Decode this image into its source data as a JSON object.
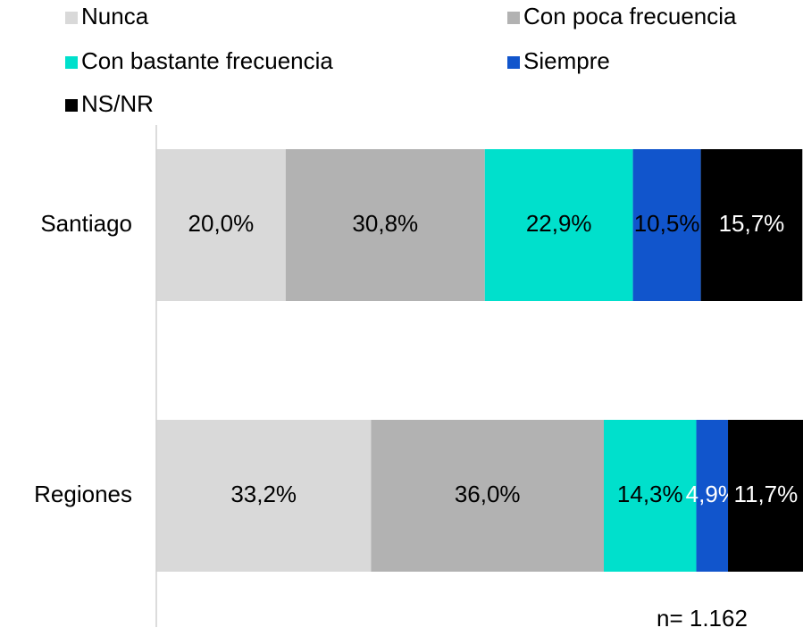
{
  "chart_data": {
    "type": "bar",
    "orientation": "horizontal",
    "stacked": true,
    "categories": [
      "Santiago",
      "Regiones"
    ],
    "series": [
      {
        "name": "Nunca",
        "color": "#d9d9d9",
        "values": [
          20.0,
          33.2
        ],
        "value_labels": [
          "20,0%",
          "33,2%"
        ]
      },
      {
        "name": "Con poca frecuencia",
        "color": "#b2b2b2",
        "values": [
          30.8,
          36.0
        ],
        "value_labels": [
          "30,8%",
          "36,0%"
        ]
      },
      {
        "name": "Con bastante frecuencia",
        "color": "#00e0cc",
        "values": [
          22.9,
          14.3
        ],
        "value_labels": [
          "22,9%",
          "14,3%"
        ]
      },
      {
        "name": "Siempre",
        "color": "#1155cc",
        "values": [
          10.5,
          4.9
        ],
        "value_labels": [
          "10,5%",
          "4,9%"
        ]
      },
      {
        "name": "NS/NR",
        "color": "#000000",
        "values": [
          15.7,
          11.7
        ],
        "value_labels": [
          "15,7%",
          "11,7%"
        ]
      }
    ],
    "xlim": [
      0,
      100
    ],
    "legend": "top",
    "annotation": "n= 1.162"
  }
}
